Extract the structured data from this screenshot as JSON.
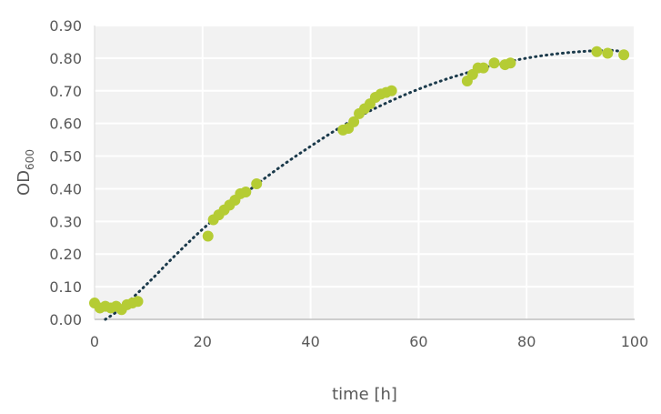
{
  "chart_data": {
    "type": "scatter",
    "title": "",
    "xlabel": "time [h]",
    "ylabel": "OD",
    "ylabel_subscript": "600",
    "xlim": [
      0,
      100
    ],
    "ylim": [
      0,
      0.9
    ],
    "x_ticks": [
      0,
      20,
      40,
      60,
      80,
      100
    ],
    "y_ticks": [
      0.0,
      0.1,
      0.2,
      0.3,
      0.4,
      0.5,
      0.6,
      0.7,
      0.8,
      0.9
    ],
    "x_tick_labels": [
      "0",
      "20",
      "40",
      "60",
      "80",
      "100"
    ],
    "y_tick_labels": [
      "0.00",
      "0.10",
      "0.20",
      "0.30",
      "0.40",
      "0.50",
      "0.60",
      "0.70",
      "0.80",
      "0.90"
    ],
    "grid": true,
    "legend": "none",
    "colors": {
      "plot_background": "#f2f2f2",
      "grid": "#ffffff",
      "points": "#b5cc34",
      "trendline": "#1b3a4b"
    },
    "series": [
      {
        "kind": "points",
        "x": [
          0,
          1,
          2,
          3,
          4,
          5,
          6,
          7,
          8,
          21,
          22,
          23,
          24,
          25,
          26,
          27,
          28,
          30,
          46,
          47,
          48,
          49,
          50,
          51,
          52,
          53,
          54,
          55,
          69,
          70,
          71,
          72,
          74,
          76,
          77,
          93,
          95,
          98
        ],
        "y": [
          0.05,
          0.035,
          0.04,
          0.035,
          0.04,
          0.03,
          0.045,
          0.05,
          0.055,
          0.255,
          0.305,
          0.32,
          0.335,
          0.35,
          0.365,
          0.385,
          0.39,
          0.415,
          0.58,
          0.585,
          0.605,
          0.63,
          0.645,
          0.66,
          0.68,
          0.69,
          0.695,
          0.7,
          0.73,
          0.75,
          0.77,
          0.77,
          0.785,
          0.78,
          0.785,
          0.82,
          0.815,
          0.81
        ]
      },
      {
        "kind": "trendline",
        "style": "dotted",
        "x": [
          2,
          5,
          10,
          15,
          20,
          25,
          30,
          35,
          40,
          45,
          50,
          55,
          60,
          65,
          70,
          75,
          80,
          85,
          90,
          95,
          98
        ],
        "y": [
          0.0,
          0.035,
          0.113,
          0.197,
          0.276,
          0.347,
          0.413,
          0.474,
          0.53,
          0.583,
          0.63,
          0.67,
          0.705,
          0.735,
          0.76,
          0.783,
          0.8,
          0.812,
          0.82,
          0.824,
          0.82
        ]
      }
    ]
  }
}
